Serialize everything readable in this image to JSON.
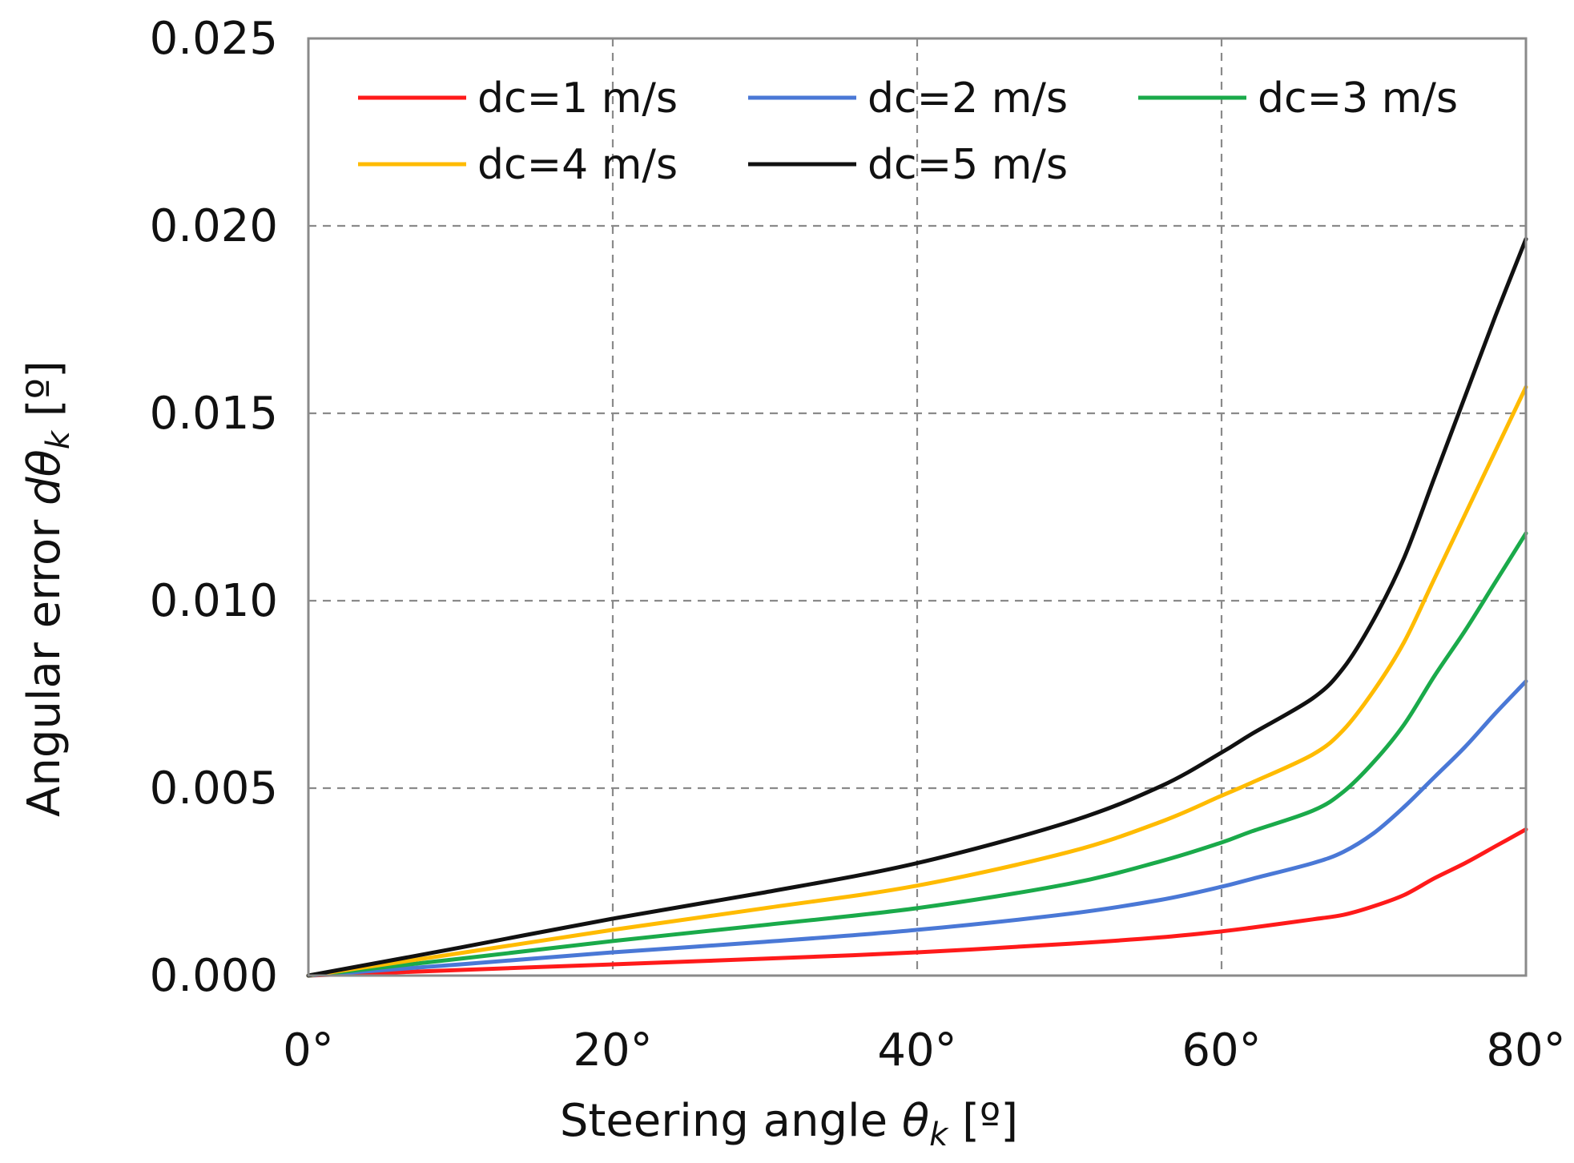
{
  "chart_data": {
    "type": "line",
    "title": "",
    "xlabel": {
      "prefix": "Steering angle ",
      "symbol": "θ",
      "subscript": "k",
      "suffix": " [º]"
    },
    "ylabel": {
      "prefix": "Angular error ",
      "symbol": "dθ",
      "subscript": "k",
      "suffix": " [º]"
    },
    "xlim": [
      0,
      80
    ],
    "ylim": [
      0,
      0.025
    ],
    "xticks": [
      0,
      20,
      40,
      60,
      80
    ],
    "xtick_labels": [
      "0°",
      "20°",
      "40°",
      "60°",
      "80°"
    ],
    "yticks": [
      0,
      0.005,
      0.01,
      0.015,
      0.02,
      0.025
    ],
    "ytick_labels": [
      "0.000",
      "0.005",
      "0.010",
      "0.015",
      "0.020",
      "0.025"
    ],
    "grid": true,
    "legend_position": "top",
    "x": [
      0,
      10,
      20,
      30,
      40,
      50,
      56,
      60,
      62,
      66,
      68,
      70,
      72,
      74,
      76,
      78,
      80
    ],
    "series": [
      {
        "name": "dc=1 m/s",
        "color": "#ff1a1a",
        "values": [
          0,
          0.00015,
          0.0003,
          0.00045,
          0.00062,
          0.00085,
          0.00102,
          0.00118,
          0.00128,
          0.0015,
          0.00162,
          0.00185,
          0.00215,
          0.0026,
          0.003,
          0.00345,
          0.0039
        ]
      },
      {
        "name": "dc=2 m/s",
        "color": "#4a78d6",
        "values": [
          0,
          0.0003,
          0.00062,
          0.0009,
          0.00122,
          0.00165,
          0.00202,
          0.00237,
          0.00258,
          0.003,
          0.0033,
          0.0038,
          0.0045,
          0.0053,
          0.0061,
          0.007,
          0.00785
        ]
      },
      {
        "name": "dc=3 m/s",
        "color": "#1aaa4a",
        "values": [
          0,
          0.00045,
          0.00092,
          0.00135,
          0.0018,
          0.00245,
          0.00305,
          0.00355,
          0.00385,
          0.0044,
          0.0049,
          0.0057,
          0.0067,
          0.008,
          0.0092,
          0.0105,
          0.0118
        ]
      },
      {
        "name": "dc=4 m/s",
        "color": "#ffbb00",
        "values": [
          0,
          0.0006,
          0.00122,
          0.0018,
          0.0024,
          0.0033,
          0.0041,
          0.0048,
          0.00515,
          0.0059,
          0.00655,
          0.0076,
          0.0089,
          0.0106,
          0.0123,
          0.014,
          0.0157
        ]
      },
      {
        "name": "dc=5 m/s",
        "color": "#111111",
        "values": [
          0,
          0.00075,
          0.00152,
          0.00222,
          0.003,
          0.0041,
          0.00505,
          0.00595,
          0.00645,
          0.0074,
          0.0082,
          0.0095,
          0.01115,
          0.0133,
          0.01545,
          0.0176,
          0.01965
        ]
      }
    ]
  }
}
